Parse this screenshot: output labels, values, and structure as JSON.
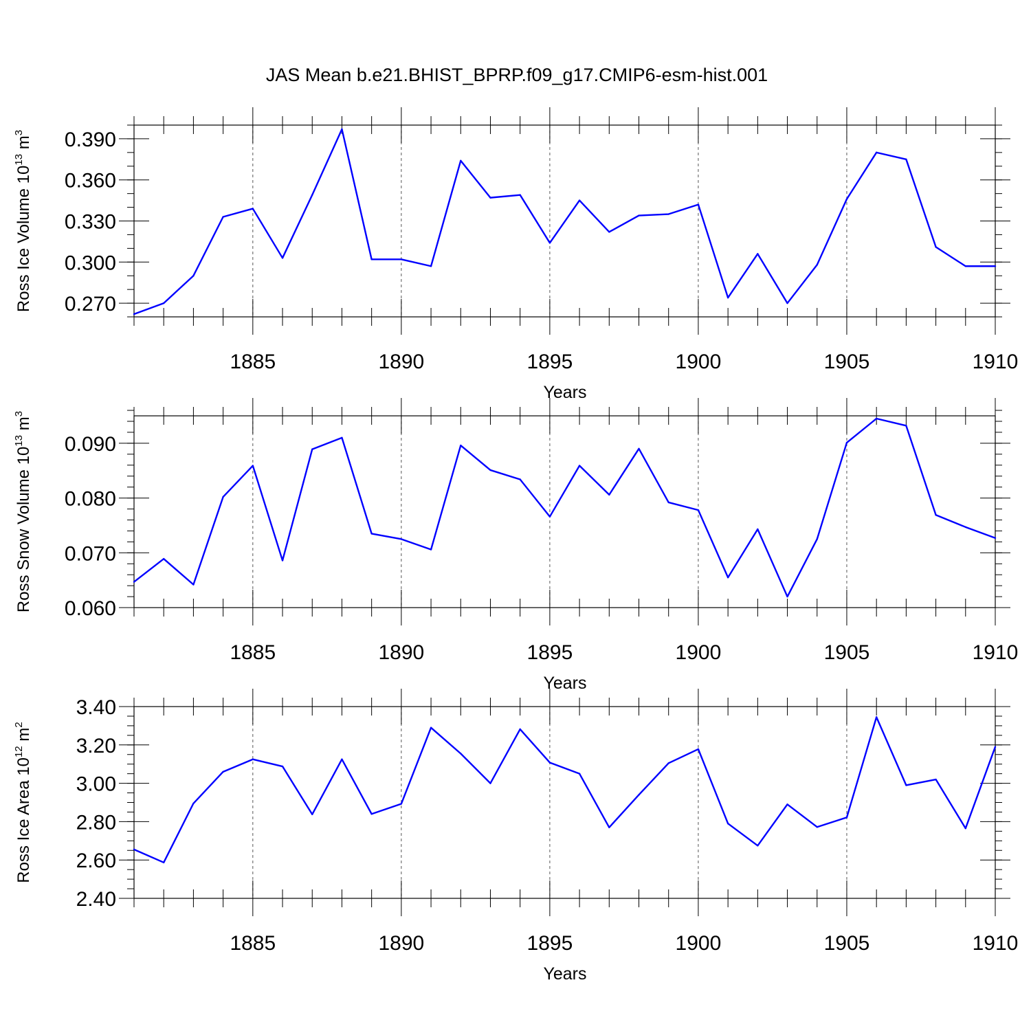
{
  "title": "JAS Mean b.e21.BHIST_BPRP.f09_g17.CMIP6-esm-hist.001",
  "colors": {
    "line": "#0000ff",
    "axis": "#000000",
    "grid": "#555555"
  },
  "chart_data": [
    {
      "type": "line",
      "ylabel": "Ross Ice Volume",
      "ylabel_unit_base": "10",
      "ylabel_unit_exp": "13",
      "ylabel_unit_tail": "m",
      "ylabel_unit_tail_exp": "3",
      "xlabel": "Years",
      "xlim": [
        1881,
        1910
      ],
      "ylim": [
        0.26,
        0.4
      ],
      "x_ticks": [
        1885,
        1890,
        1895,
        1900,
        1905,
        1910
      ],
      "y_ticks": [
        0.27,
        0.3,
        0.33,
        0.36,
        0.39
      ],
      "y_tick_labels": [
        "0.270",
        "0.300",
        "0.330",
        "0.360",
        "0.390"
      ],
      "y_decimals": 3,
      "y_minor_step": 0.01,
      "grid": "vertical dashed at major x ticks",
      "x": [
        1881,
        1882,
        1883,
        1884,
        1885,
        1886,
        1887,
        1888,
        1889,
        1890,
        1891,
        1892,
        1893,
        1894,
        1895,
        1896,
        1897,
        1898,
        1899,
        1900,
        1901,
        1902,
        1903,
        1904,
        1905,
        1906,
        1907,
        1908,
        1909,
        1910
      ],
      "values": [
        0.262,
        0.27,
        0.29,
        0.333,
        0.339,
        0.303,
        0.349,
        0.397,
        0.302,
        0.302,
        0.297,
        0.374,
        0.347,
        0.349,
        0.314,
        0.345,
        0.322,
        0.334,
        0.335,
        0.342,
        0.274,
        0.306,
        0.27,
        0.298,
        0.346,
        0.38,
        0.375,
        0.311,
        0.297,
        0.297
      ]
    },
    {
      "type": "line",
      "ylabel": "Ross Snow Volume",
      "ylabel_unit_base": "10",
      "ylabel_unit_exp": "13",
      "ylabel_unit_tail": "m",
      "ylabel_unit_tail_exp": "3",
      "xlabel": "Years",
      "xlim": [
        1881,
        1910
      ],
      "ylim": [
        0.06,
        0.095
      ],
      "x_ticks": [
        1885,
        1890,
        1895,
        1900,
        1905,
        1910
      ],
      "y_ticks": [
        0.06,
        0.07,
        0.08,
        0.09
      ],
      "y_tick_labels": [
        "0.060",
        "0.070",
        "0.080",
        "0.090"
      ],
      "y_decimals": 3,
      "y_minor_step": 0.002,
      "grid": "vertical dashed at major x ticks",
      "x": [
        1881,
        1882,
        1883,
        1884,
        1885,
        1886,
        1887,
        1888,
        1889,
        1890,
        1891,
        1892,
        1893,
        1894,
        1895,
        1896,
        1897,
        1898,
        1899,
        1900,
        1901,
        1902,
        1903,
        1904,
        1905,
        1906,
        1907,
        1908,
        1909,
        1910
      ],
      "values": [
        0.0647,
        0.0689,
        0.0642,
        0.0802,
        0.0859,
        0.0686,
        0.0889,
        0.091,
        0.0735,
        0.0725,
        0.0706,
        0.0896,
        0.0851,
        0.0834,
        0.0766,
        0.0859,
        0.0806,
        0.089,
        0.0792,
        0.0778,
        0.0655,
        0.0743,
        0.062,
        0.0725,
        0.0901,
        0.0945,
        0.0932,
        0.0769,
        0.0747,
        0.0727
      ]
    },
    {
      "type": "line",
      "ylabel": "Ross Ice Area",
      "ylabel_unit_base": "10",
      "ylabel_unit_exp": "12",
      "ylabel_unit_tail": "m",
      "ylabel_unit_tail_exp": "2",
      "xlabel": "Years",
      "xlim": [
        1881,
        1910
      ],
      "ylim": [
        2.4,
        3.4
      ],
      "x_ticks": [
        1885,
        1890,
        1895,
        1900,
        1905,
        1910
      ],
      "y_ticks": [
        2.4,
        2.6,
        2.8,
        3.0,
        3.2,
        3.4
      ],
      "y_tick_labels": [
        "2.40",
        "2.60",
        "2.80",
        "3.00",
        "3.20",
        "3.40"
      ],
      "y_decimals": 2,
      "y_minor_step": 0.05,
      "grid": "vertical dashed at major x ticks",
      "x": [
        1881,
        1882,
        1883,
        1884,
        1885,
        1886,
        1887,
        1888,
        1889,
        1890,
        1891,
        1892,
        1893,
        1894,
        1895,
        1896,
        1897,
        1898,
        1899,
        1900,
        1901,
        1902,
        1903,
        1904,
        1905,
        1906,
        1907,
        1908,
        1909,
        1910
      ],
      "values": [
        2.655,
        2.587,
        2.895,
        3.06,
        3.125,
        3.088,
        2.838,
        3.125,
        2.84,
        2.893,
        3.29,
        3.155,
        3.0,
        3.282,
        3.108,
        3.05,
        2.77,
        2.94,
        3.105,
        3.178,
        2.79,
        2.675,
        2.89,
        2.772,
        2.822,
        3.345,
        2.99,
        3.02,
        2.765,
        3.19
      ]
    }
  ]
}
